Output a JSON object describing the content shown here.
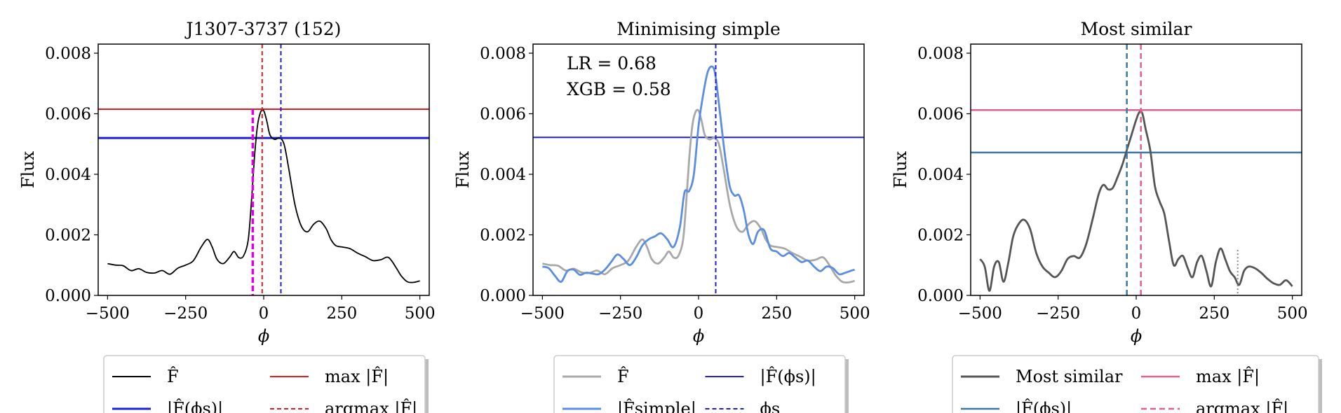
{
  "chart_data": [
    {
      "type": "line",
      "title": "J1307-3737 (152)",
      "xlabel": "ϕ",
      "ylabel": "Flux",
      "xlim": [
        -530,
        530
      ],
      "ylim": [
        0,
        0.0083
      ],
      "xticks": [
        -500,
        -250,
        0,
        250,
        500
      ],
      "xtick_labels": [
        "−500",
        "−250",
        "0",
        "250",
        "500"
      ],
      "yticks": [
        0,
        0.002,
        0.004,
        0.006,
        0.008
      ],
      "ytick_labels": [
        "0.000",
        "0.002",
        "0.004",
        "0.006",
        "0.008"
      ],
      "series": [
        {
          "name": "F̂",
          "color": "#000000",
          "x": [
            -500,
            -475,
            -450,
            -425,
            -400,
            -375,
            -350,
            -325,
            -300,
            -275,
            -250,
            -225,
            -200,
            -180,
            -165,
            -150,
            -130,
            -110,
            -95,
            -80,
            -65,
            -50,
            -40,
            -30,
            -20,
            -10,
            0,
            10,
            20,
            35,
            50,
            65,
            80,
            100,
            120,
            140,
            160,
            180,
            200,
            215,
            230,
            250,
            275,
            300,
            325,
            350,
            375,
            400,
            425,
            440,
            460,
            480,
            500
          ],
          "values": [
            0.00105,
            0.001,
            0.00098,
            0.00082,
            0.00088,
            0.00076,
            0.00074,
            0.00082,
            0.0007,
            0.0009,
            0.001,
            0.00115,
            0.0016,
            0.00185,
            0.0016,
            0.0012,
            0.00105,
            0.00125,
            0.00145,
            0.00125,
            0.0013,
            0.0018,
            0.003,
            0.0045,
            0.0056,
            0.00605,
            0.0061,
            0.00575,
            0.0053,
            0.00515,
            0.0052,
            0.005,
            0.0042,
            0.003,
            0.0023,
            0.0021,
            0.00235,
            0.00245,
            0.0022,
            0.00185,
            0.00165,
            0.0016,
            0.00155,
            0.0014,
            0.00128,
            0.00115,
            0.00118,
            0.00125,
            0.0009,
            0.00065,
            0.00045,
            0.00043,
            0.00048
          ]
        }
      ],
      "hlines": [
        {
          "name": "max |F̂|",
          "y": 0.00615,
          "color": "#e41a1c",
          "dash": "solid",
          "width": 2
        },
        {
          "name": "|F̂(ϕs)|",
          "y": 0.0052,
          "color": "#1f1fd6",
          "dash": "solid",
          "width": 3
        }
      ],
      "vlines": [
        {
          "name": "argmax |F̂|",
          "x": -5,
          "color": "#e41a1c",
          "dash": "6,4",
          "width": 2
        },
        {
          "name": "ϕs",
          "x": 55,
          "color": "#1f1fd6",
          "dash": "6,4",
          "width": 2
        },
        {
          "name": "magenta-marker",
          "x": -35,
          "color": "#e000e0",
          "dash": "8,4",
          "width": 3.5,
          "ymax": 0.00615
        }
      ],
      "legend": {
        "placement": "below",
        "entries": [
          {
            "label": "F̂",
            "color": "#000000",
            "dash": "solid",
            "width": 2
          },
          {
            "label": "max |F̂|",
            "color": "#e41a1c",
            "dash": "solid",
            "width": 2
          },
          {
            "label": "|F̂(ϕs)|",
            "color": "#1f1fd6",
            "dash": "solid",
            "width": 3
          },
          {
            "label": "argmax |F̂|",
            "color": "#e41a1c",
            "dash": "6,4",
            "width": 2
          }
        ]
      }
    },
    {
      "type": "line",
      "title": "Minimising simple",
      "xlabel": "ϕ",
      "ylabel": "Flux",
      "xlim": [
        -530,
        530
      ],
      "ylim": [
        0,
        0.0083
      ],
      "xticks": [
        -500,
        -250,
        0,
        250,
        500
      ],
      "xtick_labels": [
        "−500",
        "−250",
        "0",
        "250",
        "500"
      ],
      "yticks": [
        0,
        0.002,
        0.004,
        0.006,
        0.008
      ],
      "ytick_labels": [
        "0.000",
        "0.002",
        "0.004",
        "0.006",
        "0.008"
      ],
      "annotations": [
        "LR = 0.68",
        "XGB = 0.58"
      ],
      "series": [
        {
          "name": "F̂",
          "color": "#a8a8a8",
          "x": [
            -500,
            -475,
            -450,
            -425,
            -400,
            -375,
            -350,
            -325,
            -300,
            -275,
            -250,
            -225,
            -200,
            -180,
            -165,
            -150,
            -130,
            -110,
            -95,
            -80,
            -65,
            -50,
            -40,
            -30,
            -20,
            -10,
            0,
            10,
            20,
            35,
            50,
            65,
            80,
            100,
            120,
            140,
            160,
            180,
            200,
            215,
            230,
            250,
            275,
            300,
            325,
            350,
            375,
            400,
            425,
            440,
            460,
            480,
            500
          ],
          "values": [
            0.00105,
            0.001,
            0.00098,
            0.00082,
            0.00088,
            0.00076,
            0.00074,
            0.00082,
            0.0007,
            0.0009,
            0.001,
            0.00115,
            0.0016,
            0.00185,
            0.0016,
            0.0012,
            0.00105,
            0.00125,
            0.00145,
            0.00125,
            0.0013,
            0.0018,
            0.003,
            0.0045,
            0.0056,
            0.00605,
            0.0061,
            0.00575,
            0.0053,
            0.00515,
            0.0052,
            0.005,
            0.0042,
            0.003,
            0.0023,
            0.0021,
            0.00235,
            0.00245,
            0.0022,
            0.00185,
            0.00165,
            0.0016,
            0.00155,
            0.0014,
            0.00128,
            0.00115,
            0.00118,
            0.00125,
            0.0009,
            0.00065,
            0.00045,
            0.00043,
            0.00048
          ]
        },
        {
          "name": "|F̂simple|",
          "color": "#5b8de0",
          "x": [
            -500,
            -480,
            -460,
            -440,
            -420,
            -400,
            -380,
            -360,
            -340,
            -320,
            -300,
            -280,
            -260,
            -240,
            -220,
            -200,
            -180,
            -160,
            -140,
            -120,
            -100,
            -80,
            -60,
            -45,
            -30,
            -15,
            0,
            15,
            30,
            45,
            55,
            70,
            85,
            100,
            115,
            130,
            145,
            160,
            175,
            190,
            210,
            230,
            250,
            270,
            290,
            310,
            330,
            350,
            370,
            390,
            410,
            430,
            450,
            470,
            490,
            500
          ],
          "values": [
            0.00095,
            0.0009,
            0.00065,
            0.00045,
            0.0008,
            0.00085,
            0.00068,
            0.00075,
            0.00072,
            0.0007,
            0.00085,
            0.0011,
            0.00135,
            0.0012,
            0.001,
            0.00125,
            0.00165,
            0.00185,
            0.00195,
            0.00205,
            0.00185,
            0.0016,
            0.00225,
            0.0034,
            0.00345,
            0.004,
            0.0056,
            0.00665,
            0.0074,
            0.00755,
            0.0072,
            0.0059,
            0.0046,
            0.0036,
            0.0033,
            0.0033,
            0.0028,
            0.002,
            0.0017,
            0.0021,
            0.00215,
            0.00155,
            0.00145,
            0.0013,
            0.0014,
            0.00125,
            0.0011,
            0.00115,
            0.00095,
            0.0008,
            0.00095,
            0.0009,
            0.0007,
            0.00075,
            0.00082,
            0.00085
          ]
        }
      ],
      "hlines": [
        {
          "name": "|F̂(ϕs)|",
          "y": 0.00522,
          "color": "#1f1fd6",
          "dash": "solid",
          "width": 2
        }
      ],
      "vlines": [
        {
          "name": "ϕs",
          "x": 55,
          "color": "#1f1fd6",
          "dash": "6,4",
          "width": 2
        }
      ],
      "legend": {
        "placement": "below",
        "entries": [
          {
            "label": "F̂",
            "color": "#a8a8a8",
            "dash": "solid",
            "width": 3
          },
          {
            "label": "|F̂(ϕs)|",
            "color": "#1f1fd6",
            "dash": "solid",
            "width": 2
          },
          {
            "label": "|F̂simple|",
            "color": "#5b8de0",
            "dash": "solid",
            "width": 3
          },
          {
            "label": "ϕs",
            "color": "#1f1fd6",
            "dash": "6,4",
            "width": 2
          }
        ]
      }
    },
    {
      "type": "line",
      "title": "Most similar",
      "xlabel": "ϕ",
      "ylabel": "Flux",
      "xlim": [
        -530,
        530
      ],
      "ylim": [
        0,
        0.0083
      ],
      "xticks": [
        -500,
        -250,
        0,
        250,
        500
      ],
      "xtick_labels": [
        "−500",
        "−250",
        "0",
        "250",
        "500"
      ],
      "yticks": [
        0,
        0.002,
        0.004,
        0.006,
        0.008
      ],
      "ytick_labels": [
        "0.000",
        "0.002",
        "0.004",
        "0.006",
        "0.008"
      ],
      "series": [
        {
          "name": "Most similar",
          "color": "#555555",
          "x": [
            -500,
            -485,
            -470,
            -455,
            -440,
            -425,
            -410,
            -395,
            -380,
            -360,
            -340,
            -320,
            -300,
            -280,
            -260,
            -240,
            -220,
            -200,
            -180,
            -160,
            -140,
            -120,
            -105,
            -90,
            -75,
            -60,
            -45,
            -30,
            -15,
            0,
            10,
            20,
            30,
            45,
            60,
            75,
            90,
            105,
            120,
            135,
            150,
            165,
            180,
            195,
            210,
            225,
            240,
            255,
            270,
            285,
            300,
            315,
            330,
            345,
            360,
            380,
            400,
            420,
            440,
            460,
            480,
            500
          ],
          "values": [
            0.0012,
            0.00095,
            0.00015,
            0.00095,
            0.0011,
            0.00045,
            0.00105,
            0.0019,
            0.0023,
            0.0025,
            0.0022,
            0.0014,
            0.00095,
            0.00075,
            0.0006,
            0.0008,
            0.0012,
            0.0013,
            0.00125,
            0.0017,
            0.0025,
            0.00335,
            0.00365,
            0.0035,
            0.00355,
            0.0039,
            0.0043,
            0.0048,
            0.0053,
            0.0058,
            0.00605,
            0.006,
            0.0055,
            0.0048,
            0.0036,
            0.0031,
            0.0027,
            0.0018,
            0.001,
            0.0012,
            0.0013,
            0.0009,
            0.0006,
            0.0011,
            0.0013,
            0.0008,
            0.0003,
            0.0011,
            0.00155,
            0.0012,
            0.0008,
            0.0006,
            0.00035,
            0.0008,
            0.00095,
            0.0009,
            0.00075,
            0.00055,
            0.0004,
            0.00035,
            0.0005,
            0.0003
          ]
        }
      ],
      "hlines": [
        {
          "name": "max |F̂|",
          "y": 0.00612,
          "color": "#e0608a",
          "dash": "solid",
          "width": 2.5
        },
        {
          "name": "|F̂(ϕs)|",
          "y": 0.00472,
          "color": "#3a78a6",
          "dash": "solid",
          "width": 2.5
        }
      ],
      "vlines": [
        {
          "name": "ϕs",
          "x": -30,
          "color": "#3a78a6",
          "dash": "8,5",
          "width": 2.5
        },
        {
          "name": "argmax |F̂|",
          "x": 15,
          "color": "#e0608a",
          "dash": "8,5",
          "width": 2.5
        },
        {
          "name": "dotted-marker",
          "x": 325,
          "color": "#888888",
          "dash": "2,3",
          "width": 2,
          "ymax": 0.0015
        }
      ],
      "legend": {
        "placement": "below",
        "entries": [
          {
            "label": "Most similar",
            "color": "#555555",
            "dash": "solid",
            "width": 3
          },
          {
            "label": "max |F̂|",
            "color": "#e0608a",
            "dash": "solid",
            "width": 2.5
          },
          {
            "label": "|F̂(ϕs)|",
            "color": "#3a78a6",
            "dash": "solid",
            "width": 2.5
          },
          {
            "label": "argmax |F̂|",
            "color": "#e0608a",
            "dash": "8,5",
            "width": 2.5
          }
        ]
      }
    }
  ]
}
